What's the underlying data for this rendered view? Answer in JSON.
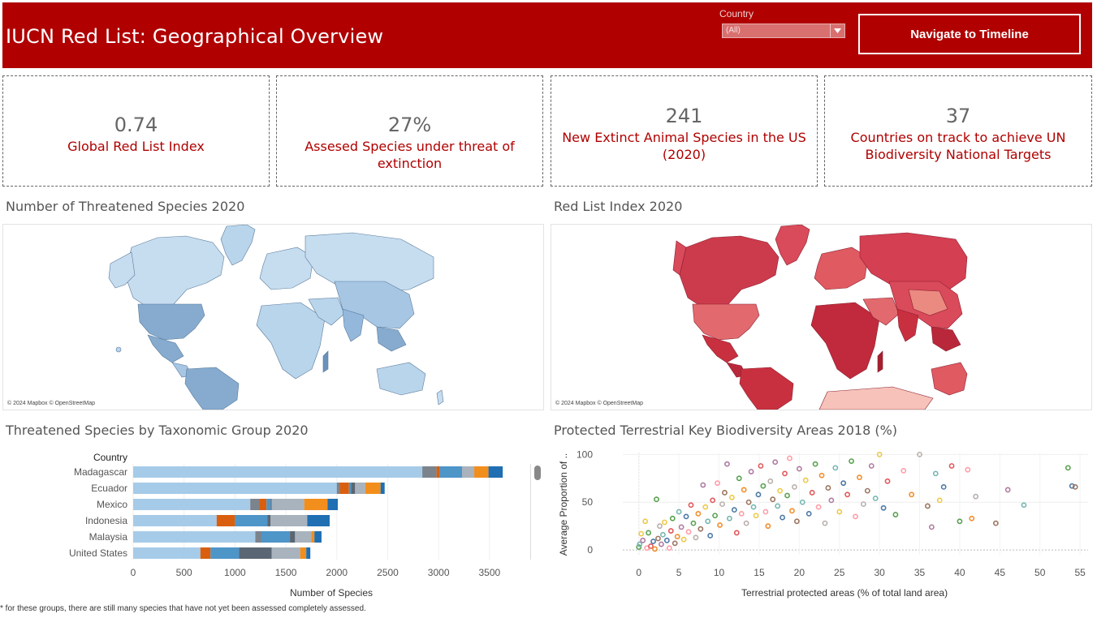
{
  "header": {
    "title": "IUCN Red List: Geographical Overview",
    "filter_label": "Country",
    "filter_value": "(All)",
    "nav_button": "Navigate to Timeline"
  },
  "kpis": [
    {
      "value": "0.74",
      "label": "Global Red List Index"
    },
    {
      "value": "27%",
      "label": "Assesed Species under threat of extinction"
    },
    {
      "value": "241",
      "label": "New Extinct Animal Species in the US (2020)"
    },
    {
      "value": "37",
      "label": "Countries on track to achieve UN Biodiversity National Targets"
    }
  ],
  "sections": {
    "map1_title": "Number of Threatened Species 2020",
    "map2_title": "Red List Index 2020",
    "bar_title": "Threatened Species by Taxonomic Group 2020",
    "scatter_title": "Protected Terrestrial Key Biodiversity Areas  2018 (%)",
    "map_credit": "© 2024 Mapbox © OpenStreetMap"
  },
  "colors": {
    "header_bg": "#b00000",
    "accent_text": "#b00000",
    "map_threatened": "#b8d4ea",
    "map_redlist": "#d6404f"
  },
  "footnote": "* for these groups, there are still many species that have not yet been assessed completely assessed.",
  "chart_data": [
    {
      "type": "bar",
      "orientation": "horizontal",
      "stacked": true,
      "row_header": "Country",
      "xlabel": "Number of Species",
      "xlim": [
        0,
        3900
      ],
      "x_ticks": [
        0,
        500,
        1000,
        1500,
        2000,
        2500,
        3000,
        3500
      ],
      "categories": [
        "Madagascar",
        "Ecuador",
        "Mexico",
        "Indonesia",
        "Malaysia",
        "United States"
      ],
      "segment_colors": [
        "#a6cbe8",
        "#7b838c",
        "#d95f0e",
        "#4e95c8",
        "#5a6673",
        "#a9b3bd",
        "#f28e1c",
        "#1f6fb2"
      ],
      "series": [
        {
          "values": [
            2840,
            2000,
            1150,
            820,
            1200,
            660
          ]
        },
        {
          "values": [
            140,
            30,
            90,
            0,
            60,
            0
          ]
        },
        {
          "values": [
            30,
            90,
            70,
            180,
            0,
            100
          ]
        },
        {
          "values": [
            220,
            20,
            40,
            320,
            280,
            280
          ]
        },
        {
          "values": [
            0,
            40,
            10,
            30,
            50,
            320
          ]
        },
        {
          "values": [
            120,
            100,
            320,
            360,
            160,
            280
          ]
        },
        {
          "values": [
            140,
            150,
            230,
            0,
            30,
            60
          ]
        },
        {
          "values": [
            140,
            40,
            100,
            220,
            70,
            40
          ]
        }
      ]
    },
    {
      "type": "scatter",
      "xlabel": "Terrestrial protected areas (% of total land area)",
      "ylabel": "Average Proportion of ..",
      "xlim": [
        -2,
        56
      ],
      "ylim": [
        -5,
        102
      ],
      "x_ticks": [
        0,
        5,
        10,
        15,
        20,
        25,
        30,
        35,
        40,
        45,
        50,
        55
      ],
      "y_ticks": [
        0,
        50,
        100
      ],
      "points": [
        {
          "x": 0.0,
          "y": 3,
          "c": "#59a14f"
        },
        {
          "x": 0.1,
          "y": 6,
          "c": "#76b7b2"
        },
        {
          "x": 0.3,
          "y": 17,
          "c": "#edc948"
        },
        {
          "x": 0.5,
          "y": 10,
          "c": "#b07aa1"
        },
        {
          "x": 0.8,
          "y": 30,
          "c": "#edc948"
        },
        {
          "x": 1.0,
          "y": 2,
          "c": "#ff9da7"
        },
        {
          "x": 1.2,
          "y": 18,
          "c": "#59a14f"
        },
        {
          "x": 1.5,
          "y": 4,
          "c": "#e15759"
        },
        {
          "x": 1.8,
          "y": 9,
          "c": "#4e79a7"
        },
        {
          "x": 2.0,
          "y": 1,
          "c": "#f28e2b"
        },
        {
          "x": 2.2,
          "y": 53,
          "c": "#59a14f"
        },
        {
          "x": 2.4,
          "y": 12,
          "c": "#9c755f"
        },
        {
          "x": 2.6,
          "y": 25,
          "c": "#bab0ac"
        },
        {
          "x": 2.8,
          "y": 6,
          "c": "#b07aa1"
        },
        {
          "x": 3.0,
          "y": 16,
          "c": "#76b7b2"
        },
        {
          "x": 3.2,
          "y": 29,
          "c": "#edc948"
        },
        {
          "x": 3.5,
          "y": 10,
          "c": "#4e79a7"
        },
        {
          "x": 3.8,
          "y": 2,
          "c": "#ff9da7"
        },
        {
          "x": 4.0,
          "y": 20,
          "c": "#e15759"
        },
        {
          "x": 4.2,
          "y": 33,
          "c": "#59a14f"
        },
        {
          "x": 4.5,
          "y": 7,
          "c": "#9c755f"
        },
        {
          "x": 4.8,
          "y": 14,
          "c": "#f28e2b"
        },
        {
          "x": 5.0,
          "y": 40,
          "c": "#76b7b2"
        },
        {
          "x": 5.3,
          "y": 24,
          "c": "#b07aa1"
        },
        {
          "x": 5.6,
          "y": 11,
          "c": "#edc948"
        },
        {
          "x": 5.9,
          "y": 35,
          "c": "#4e79a7"
        },
        {
          "x": 6.2,
          "y": 19,
          "c": "#ff9da7"
        },
        {
          "x": 6.5,
          "y": 47,
          "c": "#e15759"
        },
        {
          "x": 6.8,
          "y": 28,
          "c": "#59a14f"
        },
        {
          "x": 7.1,
          "y": 13,
          "c": "#bab0ac"
        },
        {
          "x": 7.4,
          "y": 38,
          "c": "#f28e2b"
        },
        {
          "x": 7.7,
          "y": 22,
          "c": "#9c755f"
        },
        {
          "x": 8.0,
          "y": 68,
          "c": "#b07aa1"
        },
        {
          "x": 8.3,
          "y": 45,
          "c": "#edc948"
        },
        {
          "x": 8.6,
          "y": 30,
          "c": "#76b7b2"
        },
        {
          "x": 8.9,
          "y": 15,
          "c": "#4e79a7"
        },
        {
          "x": 9.2,
          "y": 52,
          "c": "#e15759"
        },
        {
          "x": 9.5,
          "y": 36,
          "c": "#59a14f"
        },
        {
          "x": 9.8,
          "y": 70,
          "c": "#ff9da7"
        },
        {
          "x": 10.1,
          "y": 26,
          "c": "#f28e2b"
        },
        {
          "x": 10.4,
          "y": 48,
          "c": "#bab0ac"
        },
        {
          "x": 10.7,
          "y": 60,
          "c": "#9c755f"
        },
        {
          "x": 11.0,
          "y": 90,
          "c": "#b07aa1"
        },
        {
          "x": 11.3,
          "y": 33,
          "c": "#76b7b2"
        },
        {
          "x": 11.6,
          "y": 55,
          "c": "#edc948"
        },
        {
          "x": 11.9,
          "y": 42,
          "c": "#4e79a7"
        },
        {
          "x": 12.2,
          "y": 18,
          "c": "#e15759"
        },
        {
          "x": 12.5,
          "y": 75,
          "c": "#59a14f"
        },
        {
          "x": 12.8,
          "y": 38,
          "c": "#ff9da7"
        },
        {
          "x": 13.1,
          "y": 63,
          "c": "#f28e2b"
        },
        {
          "x": 13.4,
          "y": 28,
          "c": "#bab0ac"
        },
        {
          "x": 13.7,
          "y": 50,
          "c": "#9c755f"
        },
        {
          "x": 14.0,
          "y": 82,
          "c": "#b07aa1"
        },
        {
          "x": 14.3,
          "y": 45,
          "c": "#76b7b2"
        },
        {
          "x": 14.6,
          "y": 36,
          "c": "#edc948"
        },
        {
          "x": 14.9,
          "y": 58,
          "c": "#4e79a7"
        },
        {
          "x": 15.2,
          "y": 88,
          "c": "#e15759"
        },
        {
          "x": 15.5,
          "y": 67,
          "c": "#59a14f"
        },
        {
          "x": 15.8,
          "y": 40,
          "c": "#ff9da7"
        },
        {
          "x": 16.1,
          "y": 25,
          "c": "#f28e2b"
        },
        {
          "x": 16.4,
          "y": 72,
          "c": "#bab0ac"
        },
        {
          "x": 16.7,
          "y": 53,
          "c": "#9c755f"
        },
        {
          "x": 17.0,
          "y": 92,
          "c": "#b07aa1"
        },
        {
          "x": 17.3,
          "y": 46,
          "c": "#76b7b2"
        },
        {
          "x": 17.6,
          "y": 62,
          "c": "#edc948"
        },
        {
          "x": 17.9,
          "y": 34,
          "c": "#4e79a7"
        },
        {
          "x": 18.2,
          "y": 80,
          "c": "#e15759"
        },
        {
          "x": 18.5,
          "y": 57,
          "c": "#59a14f"
        },
        {
          "x": 18.8,
          "y": 96,
          "c": "#ff9da7"
        },
        {
          "x": 19.1,
          "y": 41,
          "c": "#f28e2b"
        },
        {
          "x": 19.4,
          "y": 66,
          "c": "#bab0ac"
        },
        {
          "x": 19.7,
          "y": 30,
          "c": "#9c755f"
        },
        {
          "x": 20.0,
          "y": 85,
          "c": "#b07aa1"
        },
        {
          "x": 20.4,
          "y": 50,
          "c": "#76b7b2"
        },
        {
          "x": 20.8,
          "y": 73,
          "c": "#edc948"
        },
        {
          "x": 21.2,
          "y": 38,
          "c": "#4e79a7"
        },
        {
          "x": 21.6,
          "y": 60,
          "c": "#e15759"
        },
        {
          "x": 22.0,
          "y": 90,
          "c": "#59a14f"
        },
        {
          "x": 22.4,
          "y": 45,
          "c": "#ff9da7"
        },
        {
          "x": 22.8,
          "y": 78,
          "c": "#f28e2b"
        },
        {
          "x": 23.2,
          "y": 28,
          "c": "#bab0ac"
        },
        {
          "x": 23.6,
          "y": 65,
          "c": "#9c755f"
        },
        {
          "x": 24.0,
          "y": 52,
          "c": "#b07aa1"
        },
        {
          "x": 24.5,
          "y": 86,
          "c": "#76b7b2"
        },
        {
          "x": 25.0,
          "y": 40,
          "c": "#edc948"
        },
        {
          "x": 25.5,
          "y": 70,
          "c": "#4e79a7"
        },
        {
          "x": 26.0,
          "y": 58,
          "c": "#e15759"
        },
        {
          "x": 26.5,
          "y": 93,
          "c": "#59a14f"
        },
        {
          "x": 27.0,
          "y": 35,
          "c": "#ff9da7"
        },
        {
          "x": 27.5,
          "y": 76,
          "c": "#f28e2b"
        },
        {
          "x": 28.0,
          "y": 48,
          "c": "#bab0ac"
        },
        {
          "x": 28.5,
          "y": 62,
          "c": "#9c755f"
        },
        {
          "x": 29.0,
          "y": 88,
          "c": "#b07aa1"
        },
        {
          "x": 29.5,
          "y": 54,
          "c": "#76b7b2"
        },
        {
          "x": 30.0,
          "y": 100,
          "c": "#edc948"
        },
        {
          "x": 30.5,
          "y": 44,
          "c": "#4e79a7"
        },
        {
          "x": 31.0,
          "y": 72,
          "c": "#e15759"
        },
        {
          "x": 32.0,
          "y": 37,
          "c": "#59a14f"
        },
        {
          "x": 33.0,
          "y": 83,
          "c": "#ff9da7"
        },
        {
          "x": 34.0,
          "y": 58,
          "c": "#f28e2b"
        },
        {
          "x": 35.0,
          "y": 100,
          "c": "#bab0ac"
        },
        {
          "x": 36.0,
          "y": 46,
          "c": "#9c755f"
        },
        {
          "x": 36.5,
          "y": 24,
          "c": "#b07aa1"
        },
        {
          "x": 37.0,
          "y": 80,
          "c": "#76b7b2"
        },
        {
          "x": 37.5,
          "y": 52,
          "c": "#edc948"
        },
        {
          "x": 38.0,
          "y": 66,
          "c": "#4e79a7"
        },
        {
          "x": 39.0,
          "y": 88,
          "c": "#e15759"
        },
        {
          "x": 40.0,
          "y": 30,
          "c": "#59a14f"
        },
        {
          "x": 41.0,
          "y": 84,
          "c": "#ff9da7"
        },
        {
          "x": 41.5,
          "y": 33,
          "c": "#f28e2b"
        },
        {
          "x": 42.0,
          "y": 56,
          "c": "#bab0ac"
        },
        {
          "x": 44.5,
          "y": 28,
          "c": "#9c755f"
        },
        {
          "x": 46.0,
          "y": 63,
          "c": "#b07aa1"
        },
        {
          "x": 48.0,
          "y": 47,
          "c": "#76b7b2"
        },
        {
          "x": 53.5,
          "y": 86,
          "c": "#59a14f"
        },
        {
          "x": 54.0,
          "y": 67,
          "c": "#4e79a7"
        },
        {
          "x": 54.4,
          "y": 66,
          "c": "#9c755f"
        }
      ]
    }
  ]
}
